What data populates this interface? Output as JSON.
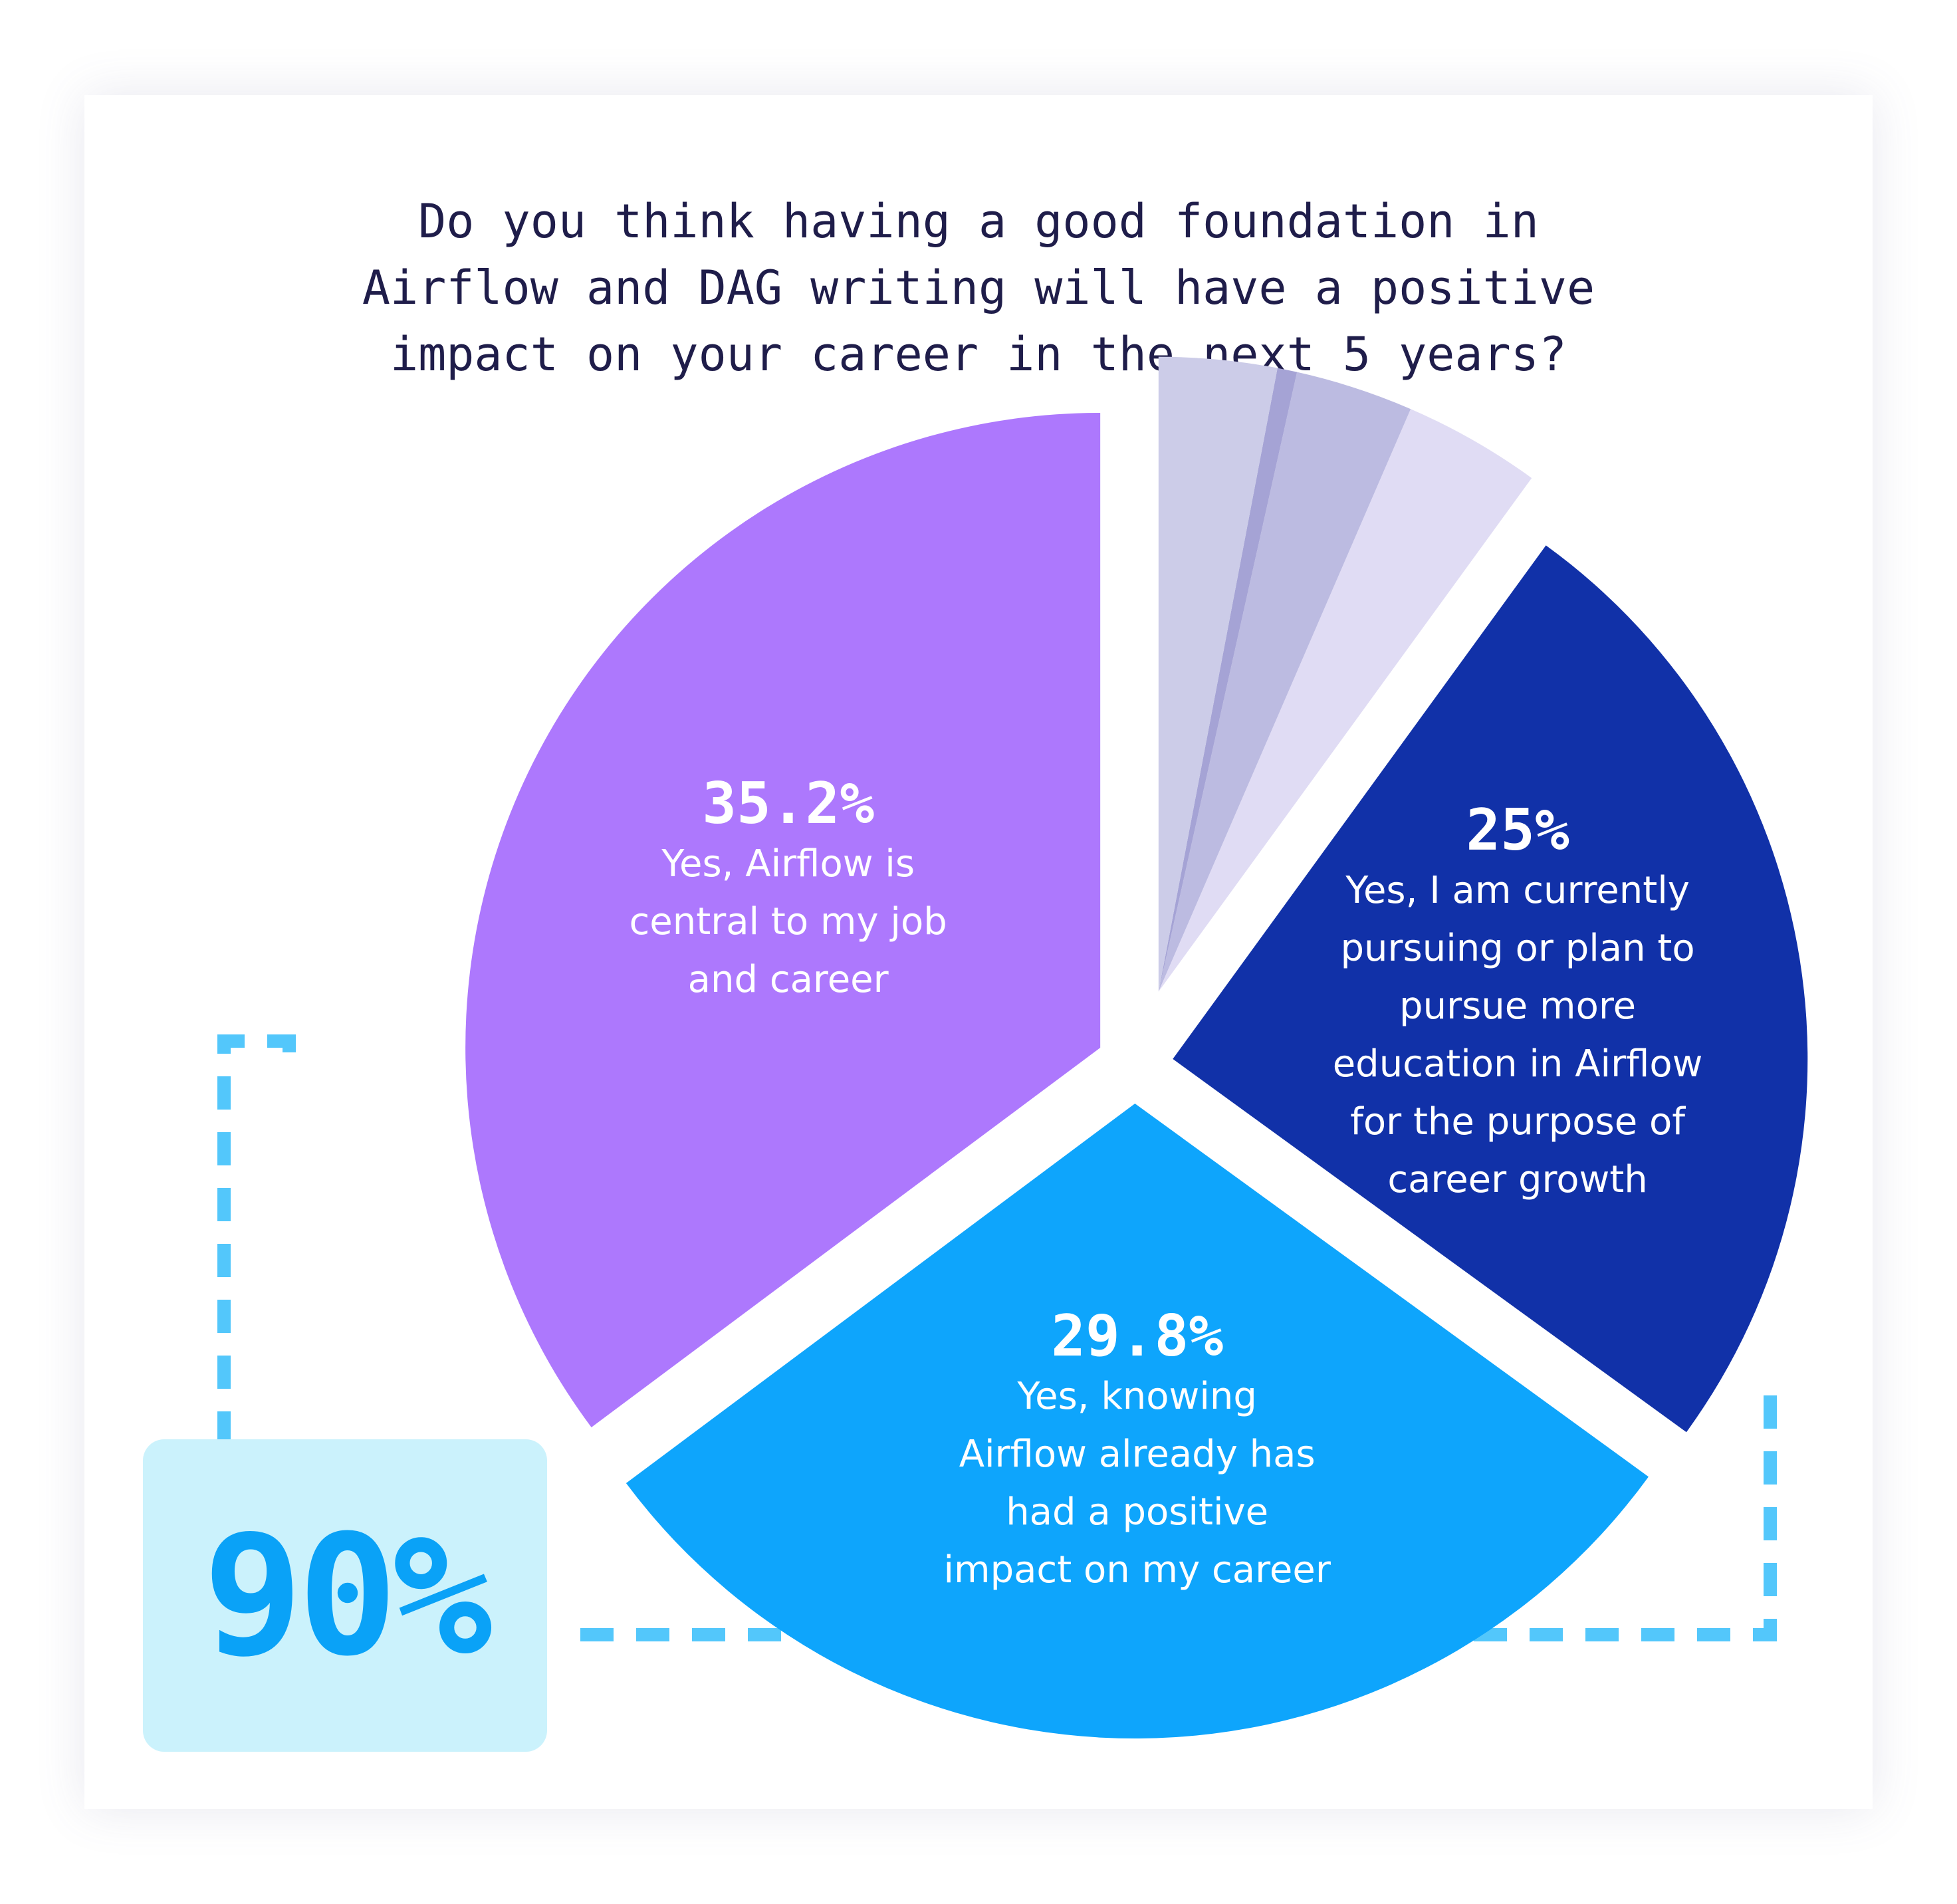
{
  "chart_data": {
    "type": "pie",
    "title_lines": [
      "Do you think having a good foundation in",
      "Airflow and DAG writing will have a positive",
      "impact on your career in the next 5 years?"
    ],
    "slices": [
      {
        "value": 35.2,
        "percent_label": "35.2%",
        "label_lines": [
          "Yes, Airflow is",
          "central to my job",
          "and career"
        ],
        "color": "#ad78fd"
      },
      {
        "value": 29.8,
        "percent_label": "29.8%",
        "label_lines": [
          "Yes, knowing",
          "Airflow already has",
          "had a positive",
          "impact on my career"
        ],
        "color": "#0ea5fc"
      },
      {
        "value": 25,
        "percent_label": "25%",
        "label_lines": [
          "Yes, I am currently",
          "pursuing or plan to",
          "pursue more",
          "education in Airflow",
          "for the purpose of",
          "career growth"
        ],
        "color": "#1131a8"
      },
      {
        "value": 3.5,
        "percent_label": "",
        "label_lines": [],
        "color": "#e0dcf4"
      },
      {
        "value": 3.0,
        "percent_label": "",
        "label_lines": [],
        "color": "#bcbbe1"
      },
      {
        "value": 0.5,
        "percent_label": "",
        "label_lines": [],
        "color": "#a5a3d5"
      },
      {
        "value": 3.0,
        "percent_label": "",
        "label_lines": [],
        "color": "#cccce8"
      }
    ],
    "start_angle_deg": 0,
    "direction": "counterclockwise",
    "legend": "none",
    "highlight": {
      "value_label": "90%",
      "covers_slices": [
        0,
        1,
        2
      ],
      "bracket_color": "#53c7fb"
    }
  }
}
